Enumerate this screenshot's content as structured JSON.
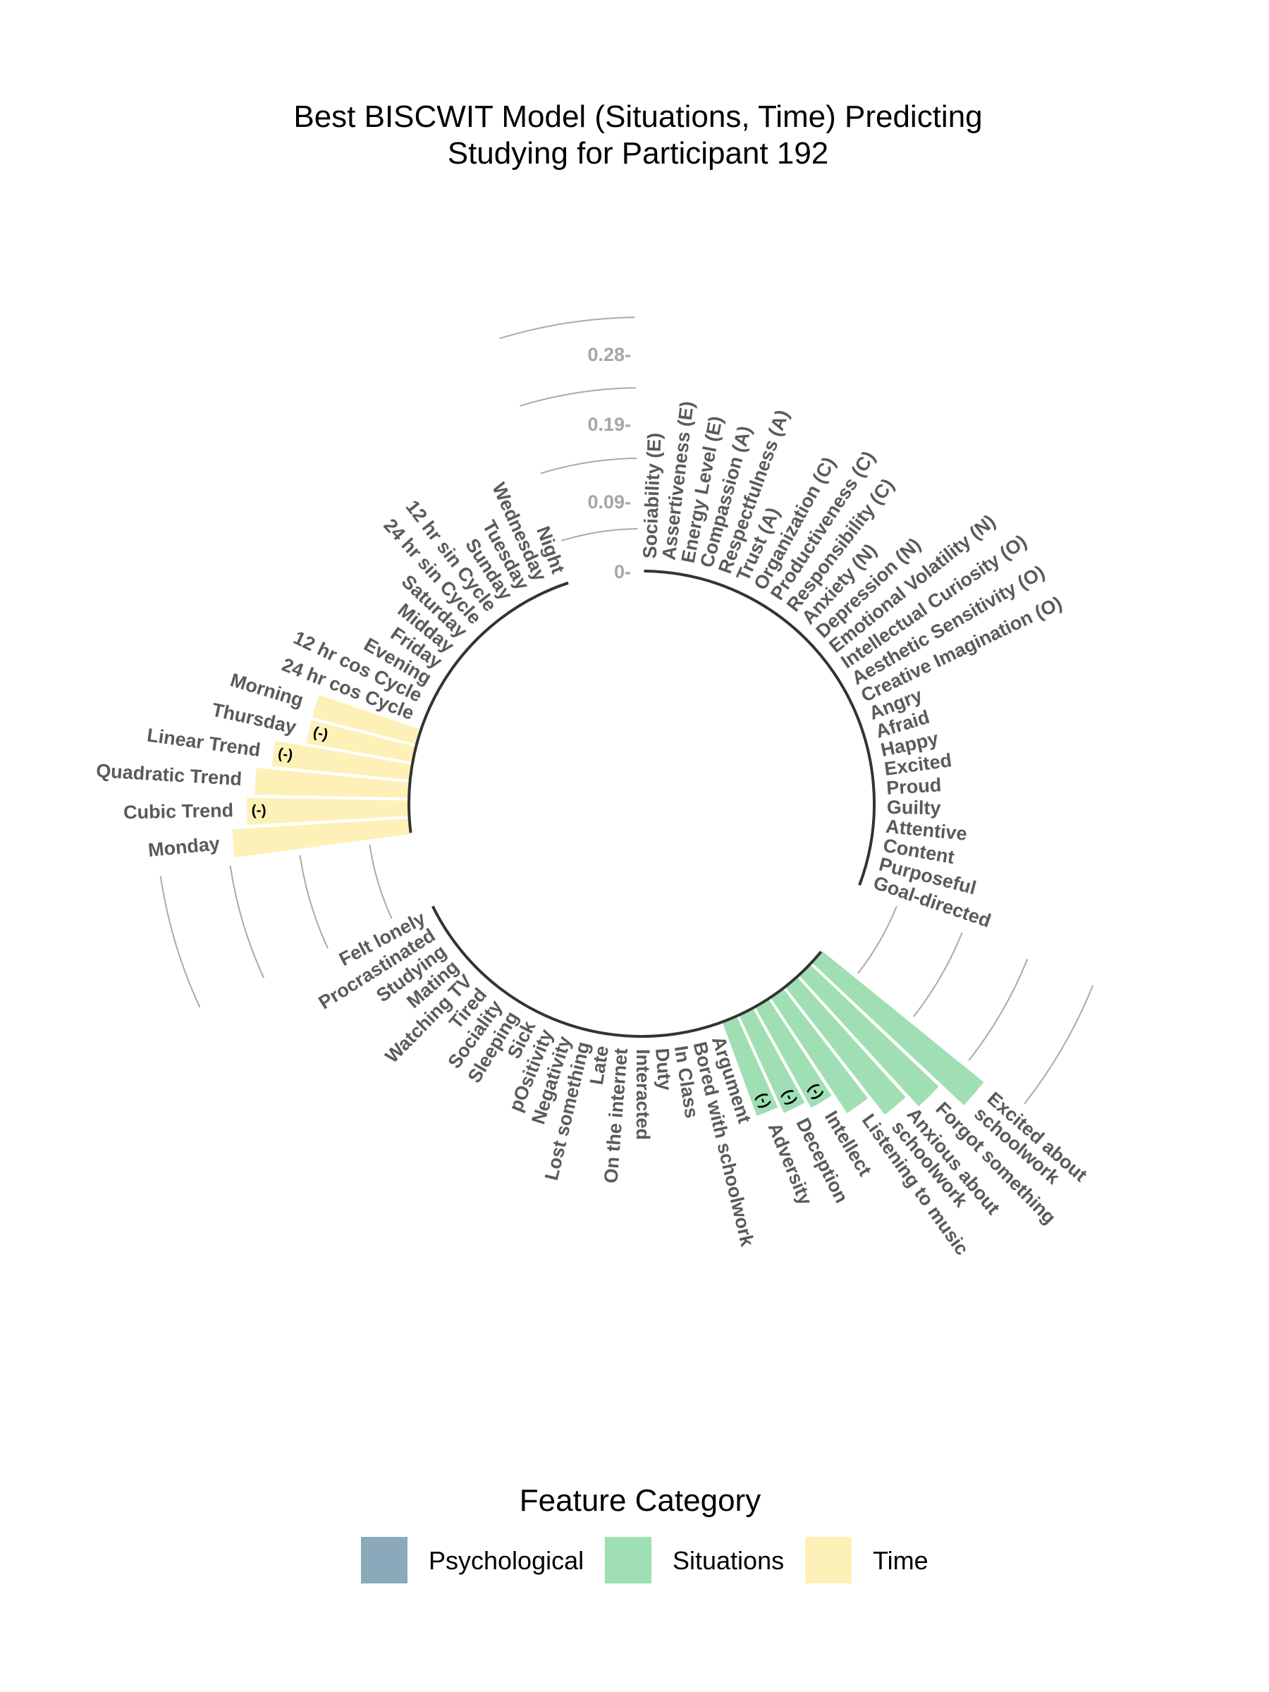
{
  "chart_data": {
    "type": "bar",
    "coord": "polar",
    "title_line1": "Best BISCWIT Model (Situations, Time) Predicting",
    "title_line2": "Studying for Participant 192",
    "scale_ticks": [
      "0-",
      "0.09-",
      "0.19-",
      "0.28-"
    ],
    "scale_tick_values": [
      0,
      0.09,
      0.19,
      0.28
    ],
    "negative_marker": "(-)",
    "legend": {
      "title": "Feature Category",
      "items": [
        {
          "label": "Psychological",
          "color": "#8aa9bb"
        },
        {
          "label": "Situations",
          "color": "#a0dfb3"
        },
        {
          "label": "Time",
          "color": "#fdf1b8"
        }
      ]
    },
    "groups": [
      {
        "name": "Psychological",
        "color": "#8aa9bb",
        "features": [
          {
            "label": "Sociability (E)",
            "value": 0
          },
          {
            "label": "Assertiveness (E)",
            "value": 0
          },
          {
            "label": "Energy Level (E)",
            "value": 0
          },
          {
            "label": "Compassion (A)",
            "value": 0
          },
          {
            "label": "Respectfulness (A)",
            "value": 0
          },
          {
            "label": "Trust (A)",
            "value": 0
          },
          {
            "label": "Organization (C)",
            "value": 0
          },
          {
            "label": "Productiveness (C)",
            "value": 0
          },
          {
            "label": "Responsibility (C)",
            "value": 0
          },
          {
            "label": "Anxiety (N)",
            "value": 0
          },
          {
            "label": "Depression (N)",
            "value": 0
          },
          {
            "label": "Emotional Volatility (N)",
            "value": 0
          },
          {
            "label": "Intellectual Curiosity (O)",
            "value": 0
          },
          {
            "label": "Aesthetic Sensitivity (O)",
            "value": 0
          },
          {
            "label": "Creative Imagination (O)",
            "value": 0
          },
          {
            "label": "Angry",
            "value": 0
          },
          {
            "label": "Afraid",
            "value": 0
          },
          {
            "label": "Happy",
            "value": 0
          },
          {
            "label": "Excited",
            "value": 0
          },
          {
            "label": "Proud",
            "value": 0
          },
          {
            "label": "Guilty",
            "value": 0
          },
          {
            "label": "Attentive",
            "value": 0
          },
          {
            "label": "Content",
            "value": 0
          },
          {
            "label": "Purposeful",
            "value": 0
          },
          {
            "label": "Goal-directed",
            "value": 0
          }
        ]
      },
      {
        "name": "Situations",
        "color": "#a0dfb3",
        "features": [
          {
            "label": "Excited about schoolwork",
            "lines": [
              "Excited about",
              "schoolwork"
            ],
            "value": 0.27
          },
          {
            "label": "Forgot something",
            "value": 0.23
          },
          {
            "label": "Anxious about schoolwork",
            "lines": [
              "Anxious about",
              "schoolwork"
            ],
            "value": 0.21
          },
          {
            "label": "Listening to music",
            "value": 0.18
          },
          {
            "label": "Intellect",
            "value": 0.15,
            "negative": true
          },
          {
            "label": "Deception",
            "value": 0.14,
            "negative": true
          },
          {
            "label": "Adversity",
            "value": 0.13,
            "negative": true
          },
          {
            "label": "Argument",
            "value": 0
          },
          {
            "label": "Bored with schoolwork",
            "value": 0
          },
          {
            "label": "In Class",
            "value": 0
          },
          {
            "label": "Duty",
            "value": 0
          },
          {
            "label": "Interacted",
            "value": 0
          },
          {
            "label": "On the internet",
            "value": 0
          },
          {
            "label": "Late",
            "value": 0
          },
          {
            "label": "Lost something",
            "value": 0
          },
          {
            "label": "Negativity",
            "value": 0
          },
          {
            "label": "pOsitivity",
            "value": 0
          },
          {
            "label": "Sick",
            "value": 0
          },
          {
            "label": "Sleeping",
            "value": 0
          },
          {
            "label": "Sociality",
            "value": 0
          },
          {
            "label": "Tired",
            "value": 0
          },
          {
            "label": "Watching TV",
            "value": 0
          },
          {
            "label": "Mating",
            "value": 0
          },
          {
            "label": "Studying",
            "value": 0
          },
          {
            "label": "Procrastinated",
            "value": 0
          },
          {
            "label": "Felt lonely",
            "value": 0
          }
        ]
      },
      {
        "name": "Time",
        "color": "#fdf1b8",
        "features": [
          {
            "label": "Monday",
            "value": 0.23
          },
          {
            "label": "Cubic Trend",
            "value": 0.21,
            "negative": true
          },
          {
            "label": "Quadratic Trend",
            "value": 0.2
          },
          {
            "label": "Linear Trend",
            "value": 0.18,
            "negative": true
          },
          {
            "label": "Thursday",
            "value": 0.14,
            "negative": true
          },
          {
            "label": "Morning",
            "value": 0.14
          },
          {
            "label": "24 hr cos Cycle",
            "value": 0
          },
          {
            "label": "12 hr cos Cycle",
            "value": 0
          },
          {
            "label": "Evening",
            "value": 0
          },
          {
            "label": "Friday",
            "value": 0
          },
          {
            "label": "Midday",
            "value": 0
          },
          {
            "label": "Saturday",
            "value": 0
          },
          {
            "label": "24 hr sin Cycle",
            "value": 0
          },
          {
            "label": "12 hr sin Cycle",
            "value": 0
          },
          {
            "label": "Sunday",
            "value": 0
          },
          {
            "label": "Tuesday",
            "value": 0
          },
          {
            "label": "Wednesday",
            "value": 0
          },
          {
            "label": "Night",
            "value": 0
          }
        ]
      }
    ]
  }
}
